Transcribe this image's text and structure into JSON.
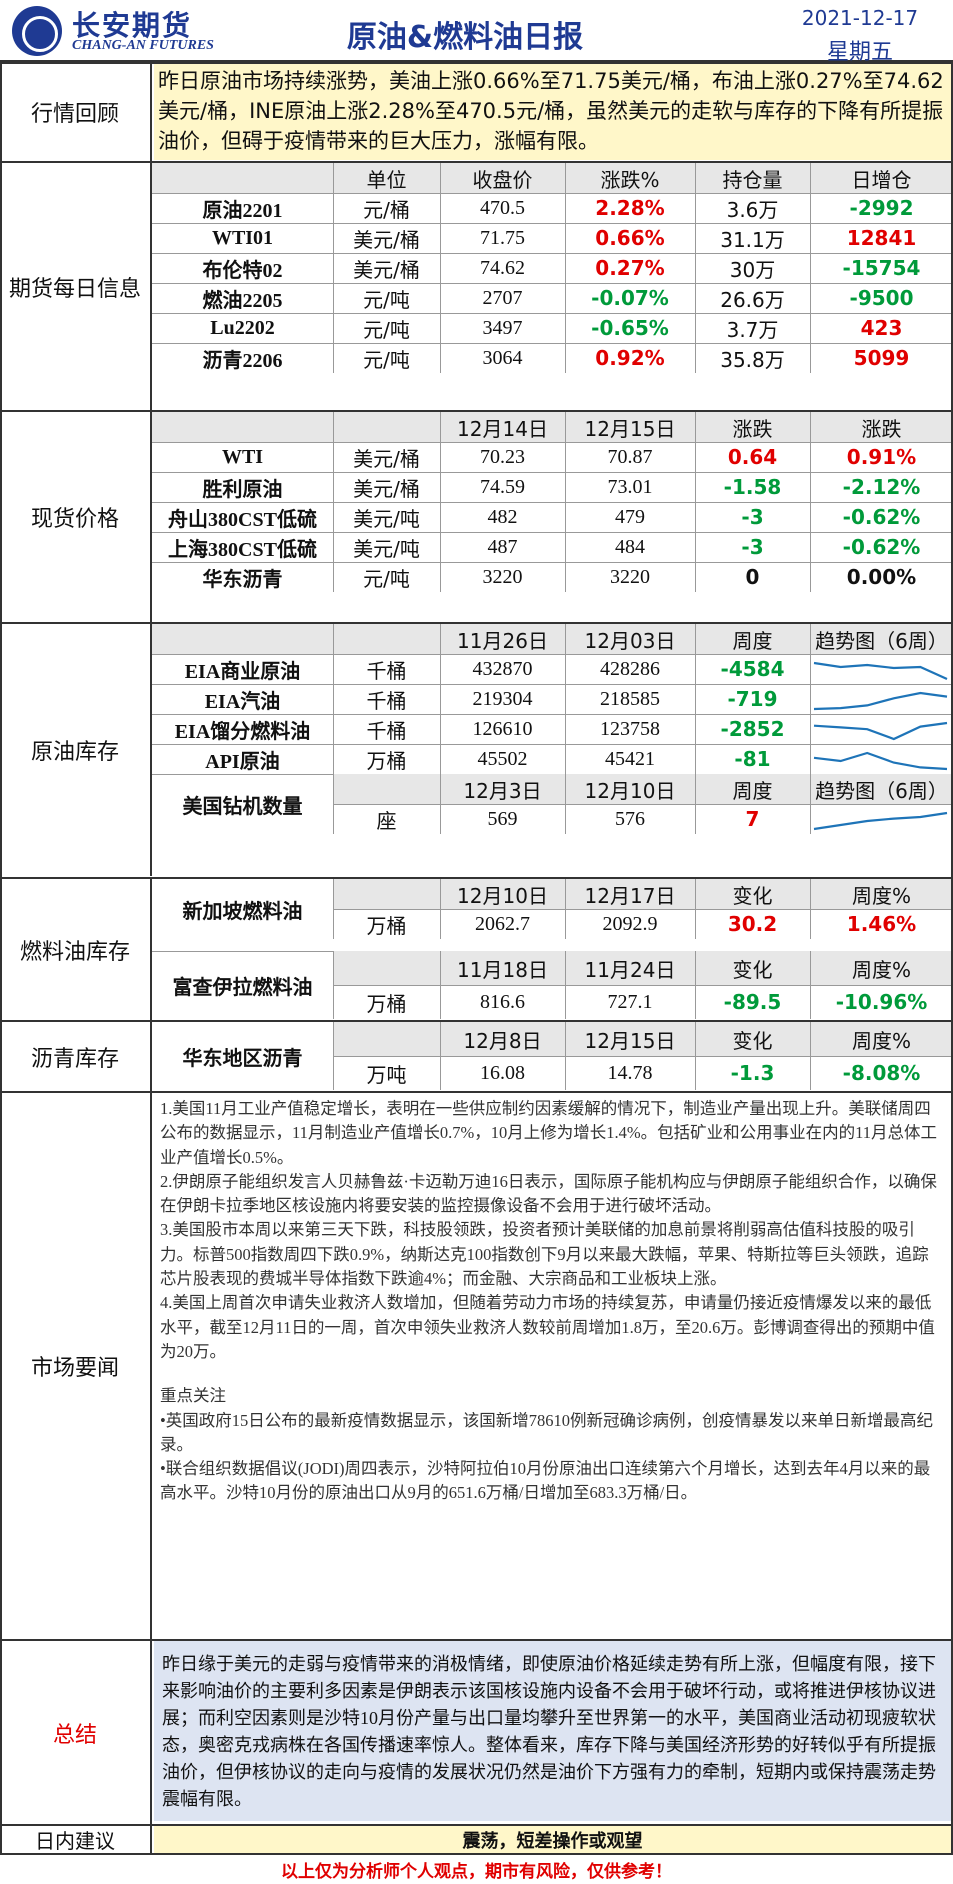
{
  "header": {
    "logo_cn": "长安期货",
    "logo_en": "CHANG-AN FUTURES",
    "title": "原油&燃料油日报",
    "date": "2021-12-17",
    "weekday": "星期五"
  },
  "recap": {
    "label": "行情回顾",
    "text": "昨日原油市场持续涨势，美油上涨0.66%至71.75美元/桶，布油上涨0.27%至74.62美元/桶，INE原油上涨2.28%至470.5元/桶，虽然美元的走软与库存的下降有所提振油价，但碍于疫情带来的巨大压力，涨幅有限。"
  },
  "futures": {
    "label": "期货每日信息",
    "headers": [
      "单位",
      "收盘价",
      "涨跌%",
      "持仓量",
      "日增仓"
    ],
    "rows": [
      {
        "name": "原油2201",
        "unit": "元/桶",
        "close": "470.5",
        "chg": "2.28%",
        "oi": "3.6万",
        "doi": "-2992"
      },
      {
        "name": "WTI01",
        "unit": "美元/桶",
        "close": "71.75",
        "chg": "0.66%",
        "oi": "31.1万",
        "doi": "12841"
      },
      {
        "name": "布伦特02",
        "unit": "美元/桶",
        "close": "74.62",
        "chg": "0.27%",
        "oi": "30万",
        "doi": "-15754"
      },
      {
        "name": "燃油2205",
        "unit": "元/吨",
        "close": "2707",
        "chg": "-0.07%",
        "oi": "26.6万",
        "doi": "-9500"
      },
      {
        "name": "Lu2202",
        "unit": "元/吨",
        "close": "3497",
        "chg": "-0.65%",
        "oi": "3.7万",
        "doi": "423"
      },
      {
        "name": "沥青2206",
        "unit": "元/吨",
        "close": "3064",
        "chg": "0.92%",
        "oi": "35.8万",
        "doi": "5099"
      }
    ]
  },
  "spot": {
    "label": "现货价格",
    "headers": [
      "12月14日",
      "12月15日",
      "涨跌",
      "涨跌"
    ],
    "rows": [
      {
        "name": "WTI",
        "unit": "美元/桶",
        "d1": "70.23",
        "d2": "70.87",
        "chg": "0.64",
        "pct": "0.91%"
      },
      {
        "name": "胜利原油",
        "unit": "美元/桶",
        "d1": "74.59",
        "d2": "73.01",
        "chg": "-1.58",
        "pct": "-2.12%"
      },
      {
        "name": "舟山380CST低硫",
        "unit": "美元/吨",
        "d1": "482",
        "d2": "479",
        "chg": "-3",
        "pct": "-0.62%"
      },
      {
        "name": "上海380CST低硫",
        "unit": "美元/吨",
        "d1": "487",
        "d2": "484",
        "chg": "-3",
        "pct": "-0.62%"
      },
      {
        "name": "华东沥青",
        "unit": "元/吨",
        "d1": "3220",
        "d2": "3220",
        "chg": "0",
        "pct": "0.00%"
      }
    ]
  },
  "crude_inv": {
    "label": "原油库存",
    "headers": [
      "11月26日",
      "12月03日",
      "周度",
      "趋势图（6周）"
    ],
    "rows": [
      {
        "name": "EIA商业原油",
        "unit": "千桶",
        "d1": "432870",
        "d2": "428286",
        "wk": "-4584"
      },
      {
        "name": "EIA汽油",
        "unit": "千桶",
        "d1": "219304",
        "d2": "218585",
        "wk": "-719"
      },
      {
        "name": "EIA馏分燃料油",
        "unit": "千桶",
        "d1": "126610",
        "d2": "123758",
        "wk": "-2852"
      },
      {
        "name": "API原油",
        "unit": "万桶",
        "d1": "45502",
        "d2": "45421",
        "wk": "-81"
      }
    ],
    "rig": {
      "name": "美国钻机数量",
      "headers": [
        "12月3日",
        "12月10日",
        "周度",
        "趋势图（6周）"
      ],
      "unit": "座",
      "d1": "569",
      "d2": "576",
      "wk": "7"
    }
  },
  "fuel_inv": {
    "label": "燃料油库存",
    "sg": {
      "name": "新加坡燃料油",
      "headers": [
        "12月10日",
        "12月17日",
        "变化",
        "周度%"
      ],
      "unit": "万桶",
      "d1": "2062.7",
      "d2": "2092.9",
      "chg": "30.2",
      "pct": "1.46%"
    },
    "fj": {
      "name": "富查伊拉燃料油",
      "headers": [
        "11月18日",
        "11月24日",
        "变化",
        "周度%"
      ],
      "unit": "万桶",
      "d1": "816.6",
      "d2": "727.1",
      "chg": "-89.5",
      "pct": "-10.96%"
    }
  },
  "asphalt_inv": {
    "label": "沥青库存",
    "name": "华东地区沥青",
    "headers": [
      "12月8日",
      "12月15日",
      "变化",
      "周度%"
    ],
    "unit": "万吨",
    "d1": "16.08",
    "d2": "14.78",
    "chg": "-1.3",
    "pct": "-8.08%"
  },
  "news": {
    "label": "市场要闻",
    "p1": "1.美国11月工业产值稳定增长，表明在一些供应制约因素缓解的情况下，制造业产量出现上升。美联储周四公布的数据显示，11月制造业产值增长0.7%，10月上修为增长1.4%。包括矿业和公用事业在内的11月总体工业产值增长0.5%。",
    "p2": "2.伊朗原子能组织发言人贝赫鲁兹·卡迈勒万迪16日表示，国际原子能机构应与伊朗原子能组织合作，以确保在伊朗卡拉季地区核设施内将要安装的监控摄像设备不会用于进行破坏活动。",
    "p3": "3.美国股市本周以来第三天下跌，科技股领跌，投资者预计美联储的加息前景将削弱高估值科技股的吸引力。标普500指数周四下跌0.9%，纳斯达克100指数创下9月以来最大跌幅，苹果、特斯拉等巨头领跌，追踪芯片股表现的费城半导体指数下跌逾4%；而金融、大宗商品和工业板块上涨。",
    "p4": "4.美国上周首次申请失业救济人数增加，但随着劳动力市场的持续复苏，申请量仍接近疫情爆发以来的最低水平，截至12月11日的一周，首次申领失业救济人数较前周增加1.8万，至20.6万。彭博调查得出的预期中值为20万。",
    "focus_title": "重点关注",
    "f1": "•英国政府15日公布的最新疫情数据显示，该国新增78610例新冠确诊病例，创疫情暴发以来单日新增最高纪录。",
    "f2": "•联合组织数据倡议(JODI)周四表示，沙特阿拉伯10月份原油出口连续第六个月增长，达到去年4月以来的最高水平。沙特10月份的原油出口从9月的651.6万桶/日增加至683.3万桶/日。"
  },
  "summary": {
    "label": "总结",
    "text": "昨日缘于美元的走弱与疫情带来的消极情绪，即使原油价格延续走势有所上涨，但幅度有限，接下来影响油价的主要利多因素是伊朗表示该国核设施内设备不会用于破坏行动，或将推进伊核协议进展；而利空因素则是沙特10月份产量与出口量均攀升至世界第一的水平，美国商业活动初现疲软状态，奥密克戎病株在各国传播速率惊人。整体看来，库存下降与美国经济形势的好转似乎有所提振油价，但伊核协议的走向与疫情的发展状况仍然是油价下方强有力的牵制，短期内或保持震荡走势震幅有限。"
  },
  "advice": {
    "label": "日内建议",
    "text": "震荡，短差操作或观望"
  },
  "footer": "以上仅为分析师个人观点，期市有风险，仅供参考！",
  "colors": {
    "brand": "#1f3a93",
    "up": "#e00000",
    "down": "#009a3a",
    "recap_bg": "#fff7c9",
    "summary_bg": "#dde4f2",
    "spark": "#1e74b8"
  }
}
